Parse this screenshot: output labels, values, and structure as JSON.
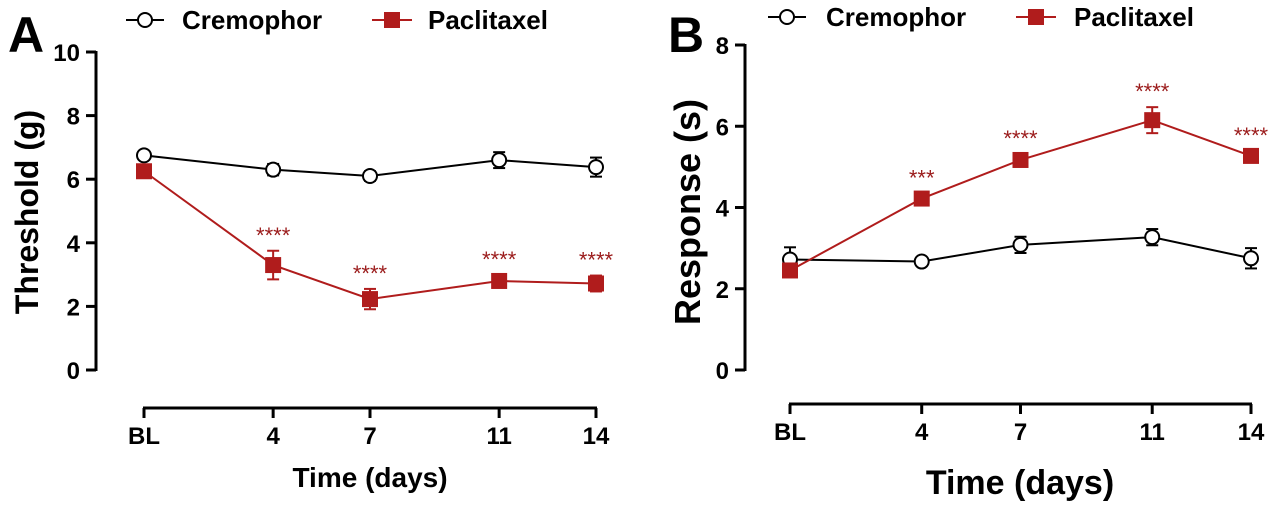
{
  "colors": {
    "cremophor": "#000000",
    "paclitaxel": "#b01c1c",
    "significance": "#9b1b1b"
  },
  "chart_data": [
    {
      "panel": "A",
      "type": "line",
      "xlabel": "Time (days)",
      "ylabel": "Threshold (g)",
      "categories": [
        "BL",
        "4",
        "7",
        "11",
        "14"
      ],
      "x": [
        0,
        4,
        7,
        11,
        14
      ],
      "ylim": [
        0,
        10
      ],
      "yticks": [
        0,
        2,
        4,
        6,
        8,
        10
      ],
      "legend_position": "top",
      "series": [
        {
          "name": "Cremophor",
          "marker": "open-circle",
          "values": [
            6.75,
            6.3,
            6.1,
            6.6,
            6.38
          ],
          "errors": [
            0.12,
            0.18,
            0.15,
            0.25,
            0.3
          ]
        },
        {
          "name": "Paclitaxel",
          "marker": "filled-square",
          "values": [
            6.25,
            3.3,
            2.23,
            2.8,
            2.72
          ],
          "errors": [
            0.2,
            0.45,
            0.32,
            0.18,
            0.25
          ],
          "significance": [
            "",
            "****",
            "****",
            "****",
            "****"
          ]
        }
      ]
    },
    {
      "panel": "B",
      "type": "line",
      "xlabel": "Time (days)",
      "ylabel": "Response (s)",
      "categories": [
        "BL",
        "4",
        "7",
        "11",
        "14"
      ],
      "x": [
        0,
        4,
        7,
        11,
        14
      ],
      "ylim": [
        0,
        8
      ],
      "yticks": [
        0,
        2,
        4,
        6,
        8
      ],
      "legend_position": "top",
      "series": [
        {
          "name": "Cremophor",
          "marker": "open-circle",
          "values": [
            2.72,
            2.67,
            3.08,
            3.27,
            2.75
          ],
          "errors": [
            0.3,
            0.1,
            0.2,
            0.2,
            0.25
          ]
        },
        {
          "name": "Paclitaxel",
          "marker": "filled-square",
          "values": [
            2.45,
            4.22,
            5.17,
            6.15,
            5.27
          ],
          "errors": [
            0.15,
            0.12,
            0.15,
            0.32,
            0.12
          ],
          "significance": [
            "",
            "***",
            "****",
            "****",
            "****"
          ]
        }
      ]
    }
  ]
}
